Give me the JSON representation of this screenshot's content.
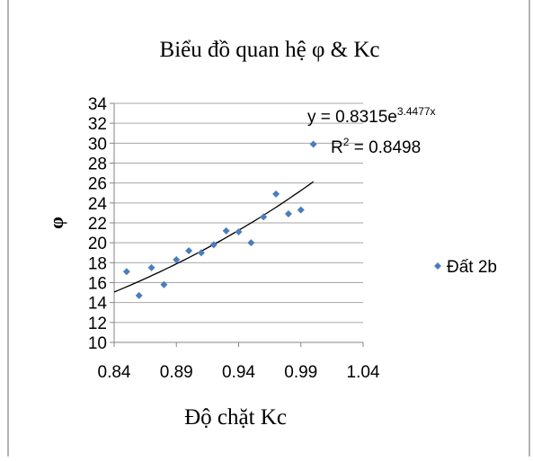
{
  "chart_data": {
    "type": "scatter",
    "title": "Biểu đồ quan hệ φ & Kc",
    "xlabel": "Độ chặt Kc",
    "ylabel": "φ",
    "xlim": [
      0.84,
      1.04
    ],
    "ylim": [
      10,
      34
    ],
    "x_ticks": [
      "0.84",
      "0.89",
      "0.94",
      "0.99",
      "1.04"
    ],
    "y_ticks": [
      "10",
      "12",
      "14",
      "16",
      "18",
      "20",
      "22",
      "24",
      "26",
      "28",
      "30",
      "32",
      "34"
    ],
    "grid": "horizontal",
    "legend_position": "right",
    "series": [
      {
        "name": "Đất 2b",
        "color": "#4a7ebb",
        "points": [
          {
            "x": 0.85,
            "y": 17.1
          },
          {
            "x": 0.86,
            "y": 14.7
          },
          {
            "x": 0.87,
            "y": 17.5
          },
          {
            "x": 0.88,
            "y": 15.8
          },
          {
            "x": 0.89,
            "y": 18.3
          },
          {
            "x": 0.9,
            "y": 19.2
          },
          {
            "x": 0.91,
            "y": 19.0
          },
          {
            "x": 0.92,
            "y": 19.8
          },
          {
            "x": 0.93,
            "y": 21.2
          },
          {
            "x": 0.94,
            "y": 21.1
          },
          {
            "x": 0.95,
            "y": 20.0
          },
          {
            "x": 0.96,
            "y": 22.6
          },
          {
            "x": 0.97,
            "y": 24.9
          },
          {
            "x": 0.98,
            "y": 22.9
          },
          {
            "x": 0.99,
            "y": 23.3
          },
          {
            "x": 1.0,
            "y": 29.9
          }
        ]
      }
    ],
    "trendline": {
      "type": "exponential",
      "a": 0.8315,
      "b": 3.4477,
      "x_range": [
        0.84,
        1.0
      ],
      "color": "#000000"
    },
    "equation_text": {
      "base": "y = 0.8315e",
      "exponent": "3.4477x"
    },
    "r2_text": {
      "label": "R",
      "sup": "2",
      "value": " = 0.8498"
    }
  }
}
